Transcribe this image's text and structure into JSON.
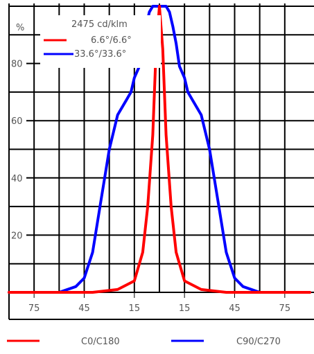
{
  "chart_data": {
    "type": "line",
    "title": "",
    "intensity_label": "2475 cd/klm",
    "ylabel": "%",
    "ylim": [
      0,
      100
    ],
    "y_ticks": [
      "20",
      "40",
      "60",
      "80"
    ],
    "y_tick_values": [
      20,
      40,
      60,
      80
    ],
    "xlim": [
      -90,
      90
    ],
    "x_tick_labels": [
      "75",
      "45",
      "15",
      "15",
      "45",
      "75"
    ],
    "x_tick_values": [
      -75,
      -45,
      -15,
      15,
      45,
      75
    ],
    "grid": true,
    "annotations": [
      {
        "label": "6.6°/6.6°",
        "color": "#ff0000"
      },
      {
        "label": "33.6°/33.6°",
        "color": "#0000ff"
      }
    ],
    "series": [
      {
        "name": "C0/C180",
        "color": "#ff0000",
        "x": [
          -90,
          -60,
          -40,
          -25,
          -15,
          -10,
          -7,
          -4,
          -2,
          0,
          2,
          4,
          7,
          10,
          15,
          25,
          40,
          60,
          90
        ],
        "values": [
          0,
          0,
          0,
          1,
          4,
          14,
          30,
          55,
          85,
          100,
          85,
          55,
          30,
          14,
          4,
          1,
          0,
          0,
          0
        ]
      },
      {
        "name": "C90/C270",
        "color": "#0000ff",
        "x": [
          -90,
          -60,
          -50,
          -45,
          -40,
          -35,
          -30,
          -25,
          -20,
          -17,
          -15,
          -12,
          -10,
          -8,
          -6,
          -4,
          -2,
          0,
          2,
          4,
          6,
          8,
          10,
          12,
          15,
          17,
          20,
          25,
          30,
          35,
          40,
          45,
          50,
          60,
          90
        ],
        "values": [
          0,
          0,
          2,
          5,
          14,
          32,
          50,
          62,
          67,
          70,
          75,
          79,
          87,
          93,
          98,
          100,
          100,
          100,
          100,
          100,
          98,
          93,
          87,
          79,
          75,
          70,
          67,
          62,
          50,
          32,
          14,
          5,
          2,
          0,
          0
        ]
      }
    ],
    "legend": [
      {
        "label": "C0/C180",
        "color": "#ff0000"
      },
      {
        "label": "C90/C270",
        "color": "#0000ff"
      }
    ],
    "legend_position": "bottom"
  }
}
